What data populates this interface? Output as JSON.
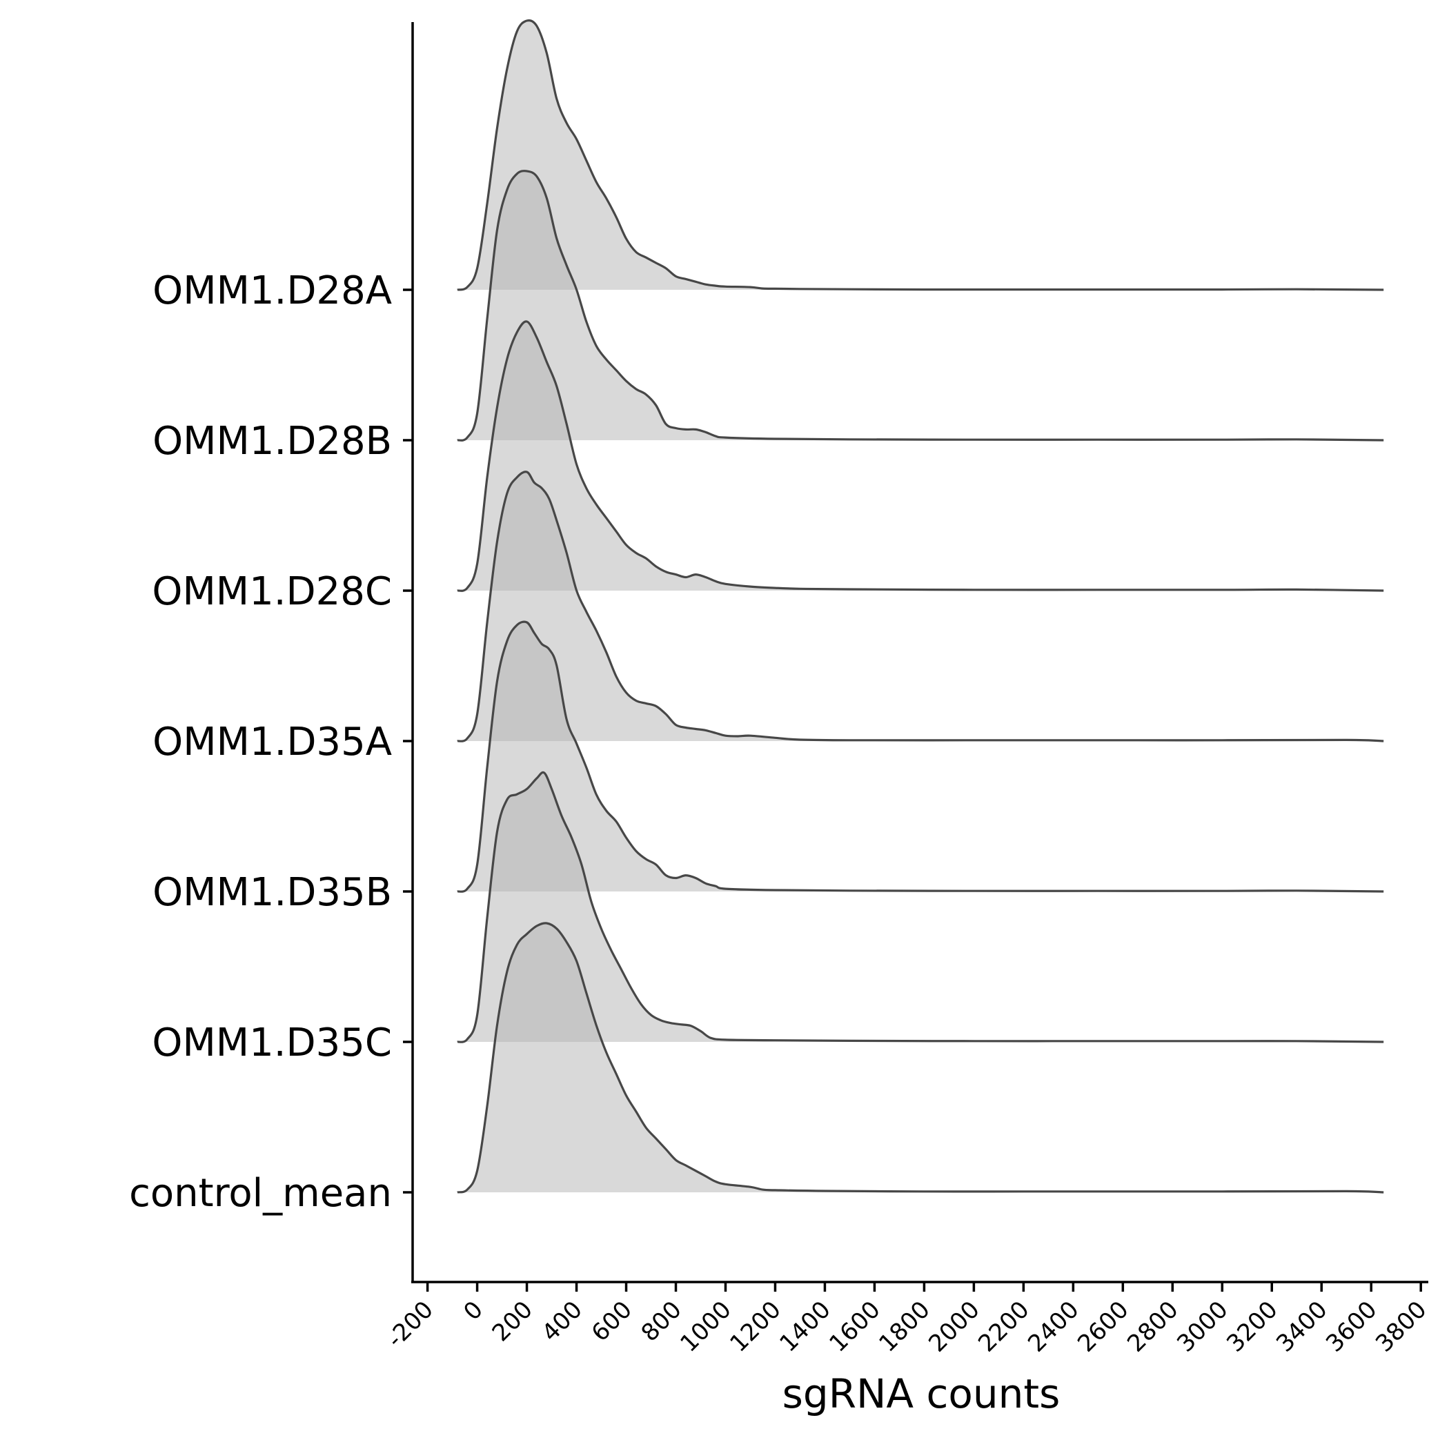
{
  "chart_data": {
    "type": "ridgeline",
    "title": "",
    "xlabel": "sgRNA counts",
    "ylabel": "",
    "xlim": [
      -260,
      3830
    ],
    "x_ticks": [
      -200,
      0,
      200,
      400,
      600,
      800,
      1000,
      1200,
      1400,
      1600,
      1800,
      2000,
      2200,
      2400,
      2600,
      2800,
      3000,
      3200,
      3400,
      3600,
      3800
    ],
    "x_tick_labels": [
      "-200",
      "0",
      "200",
      "400",
      "600",
      "800",
      "1000",
      "1200",
      "1400",
      "1600",
      "1800",
      "2000",
      "2200",
      "2400",
      "2600",
      "2800",
      "3000",
      "3200",
      "3400",
      "3600",
      "3800"
    ],
    "x_range_of_density": [
      -80,
      3650
    ],
    "fill_color": "#b3b3b3",
    "fill_opacity": 0.5,
    "line_color": "#474747",
    "series": [
      {
        "name": "OMM1.D28A",
        "points": [
          [
            -80,
            0
          ],
          [
            -40,
            0.01
          ],
          [
            0,
            0.08
          ],
          [
            40,
            0.32
          ],
          [
            80,
            0.6
          ],
          [
            120,
            0.82
          ],
          [
            160,
            0.96
          ],
          [
            200,
            1.0
          ],
          [
            240,
            0.98
          ],
          [
            280,
            0.88
          ],
          [
            320,
            0.71
          ],
          [
            360,
            0.62
          ],
          [
            400,
            0.56
          ],
          [
            440,
            0.48
          ],
          [
            480,
            0.4
          ],
          [
            520,
            0.34
          ],
          [
            560,
            0.27
          ],
          [
            600,
            0.19
          ],
          [
            640,
            0.14
          ],
          [
            680,
            0.12
          ],
          [
            720,
            0.1
          ],
          [
            760,
            0.08
          ],
          [
            800,
            0.05
          ],
          [
            840,
            0.04
          ],
          [
            880,
            0.03
          ],
          [
            920,
            0.02
          ],
          [
            960,
            0.015
          ],
          [
            1000,
            0.012
          ],
          [
            1100,
            0.01
          ],
          [
            1150,
            0.005
          ],
          [
            1200,
            0.004
          ],
          [
            1300,
            0.003
          ],
          [
            1500,
            0.002
          ],
          [
            1800,
            0.001
          ],
          [
            2200,
            0.001
          ],
          [
            2600,
            0.001
          ],
          [
            3000,
            0.001
          ],
          [
            3300,
            0.002
          ],
          [
            3650,
            0
          ]
        ]
      },
      {
        "name": "OMM1.D28B",
        "points": [
          [
            -80,
            0
          ],
          [
            -40,
            0.01
          ],
          [
            0,
            0.1
          ],
          [
            40,
            0.45
          ],
          [
            80,
            0.78
          ],
          [
            120,
            0.93
          ],
          [
            160,
            0.99
          ],
          [
            200,
            1.0
          ],
          [
            240,
            0.98
          ],
          [
            280,
            0.9
          ],
          [
            320,
            0.75
          ],
          [
            360,
            0.65
          ],
          [
            400,
            0.56
          ],
          [
            440,
            0.44
          ],
          [
            480,
            0.35
          ],
          [
            520,
            0.3
          ],
          [
            560,
            0.26
          ],
          [
            600,
            0.22
          ],
          [
            640,
            0.19
          ],
          [
            680,
            0.17
          ],
          [
            720,
            0.13
          ],
          [
            760,
            0.06
          ],
          [
            800,
            0.045
          ],
          [
            840,
            0.04
          ],
          [
            880,
            0.04
          ],
          [
            920,
            0.03
          ],
          [
            960,
            0.015
          ],
          [
            1000,
            0.01
          ],
          [
            1200,
            0.005
          ],
          [
            1500,
            0.003
          ],
          [
            2000,
            0.002
          ],
          [
            2500,
            0.002
          ],
          [
            3000,
            0.002
          ],
          [
            3300,
            0.003
          ],
          [
            3650,
            0
          ]
        ]
      },
      {
        "name": "OMM1.D28C",
        "points": [
          [
            -80,
            0
          ],
          [
            -40,
            0.01
          ],
          [
            0,
            0.1
          ],
          [
            40,
            0.42
          ],
          [
            80,
            0.68
          ],
          [
            120,
            0.86
          ],
          [
            160,
            0.96
          ],
          [
            200,
            1.0
          ],
          [
            240,
            0.94
          ],
          [
            280,
            0.85
          ],
          [
            320,
            0.76
          ],
          [
            360,
            0.62
          ],
          [
            400,
            0.47
          ],
          [
            440,
            0.38
          ],
          [
            480,
            0.32
          ],
          [
            520,
            0.27
          ],
          [
            560,
            0.22
          ],
          [
            600,
            0.17
          ],
          [
            640,
            0.14
          ],
          [
            680,
            0.12
          ],
          [
            720,
            0.09
          ],
          [
            760,
            0.07
          ],
          [
            800,
            0.06
          ],
          [
            840,
            0.05
          ],
          [
            880,
            0.06
          ],
          [
            920,
            0.05
          ],
          [
            960,
            0.035
          ],
          [
            1000,
            0.025
          ],
          [
            1100,
            0.015
          ],
          [
            1200,
            0.01
          ],
          [
            1300,
            0.007
          ],
          [
            1500,
            0.005
          ],
          [
            2000,
            0.003
          ],
          [
            2500,
            0.003
          ],
          [
            3000,
            0.003
          ],
          [
            3300,
            0.004
          ],
          [
            3650,
            0
          ]
        ]
      },
      {
        "name": "OMM1.D35A",
        "points": [
          [
            -80,
            0
          ],
          [
            -40,
            0.01
          ],
          [
            0,
            0.1
          ],
          [
            40,
            0.44
          ],
          [
            80,
            0.74
          ],
          [
            120,
            0.92
          ],
          [
            160,
            0.98
          ],
          [
            200,
            1.0
          ],
          [
            230,
            0.96
          ],
          [
            260,
            0.94
          ],
          [
            290,
            0.9
          ],
          [
            320,
            0.82
          ],
          [
            360,
            0.7
          ],
          [
            400,
            0.56
          ],
          [
            440,
            0.48
          ],
          [
            480,
            0.41
          ],
          [
            520,
            0.33
          ],
          [
            560,
            0.24
          ],
          [
            600,
            0.18
          ],
          [
            640,
            0.15
          ],
          [
            680,
            0.14
          ],
          [
            720,
            0.13
          ],
          [
            760,
            0.1
          ],
          [
            800,
            0.06
          ],
          [
            840,
            0.05
          ],
          [
            880,
            0.045
          ],
          [
            920,
            0.04
          ],
          [
            960,
            0.03
          ],
          [
            1000,
            0.02
          ],
          [
            1050,
            0.018
          ],
          [
            1100,
            0.02
          ],
          [
            1200,
            0.012
          ],
          [
            1300,
            0.005
          ],
          [
            1500,
            0.003
          ],
          [
            2000,
            0.003
          ],
          [
            2500,
            0.003
          ],
          [
            3000,
            0.003
          ],
          [
            3500,
            0.004
          ],
          [
            3650,
            0
          ]
        ]
      },
      {
        "name": "OMM1.D35B",
        "points": [
          [
            -80,
            0
          ],
          [
            -40,
            0.01
          ],
          [
            0,
            0.1
          ],
          [
            40,
            0.46
          ],
          [
            80,
            0.78
          ],
          [
            120,
            0.93
          ],
          [
            160,
            0.99
          ],
          [
            200,
            1.0
          ],
          [
            230,
            0.96
          ],
          [
            260,
            0.92
          ],
          [
            290,
            0.9
          ],
          [
            320,
            0.84
          ],
          [
            360,
            0.64
          ],
          [
            400,
            0.55
          ],
          [
            440,
            0.46
          ],
          [
            480,
            0.36
          ],
          [
            520,
            0.3
          ],
          [
            560,
            0.26
          ],
          [
            600,
            0.2
          ],
          [
            640,
            0.15
          ],
          [
            680,
            0.12
          ],
          [
            720,
            0.1
          ],
          [
            760,
            0.06
          ],
          [
            800,
            0.05
          ],
          [
            840,
            0.06
          ],
          [
            880,
            0.05
          ],
          [
            920,
            0.03
          ],
          [
            960,
            0.02
          ],
          [
            1000,
            0.01
          ],
          [
            1200,
            0.005
          ],
          [
            1500,
            0.003
          ],
          [
            2000,
            0.002
          ],
          [
            2500,
            0.002
          ],
          [
            3000,
            0.002
          ],
          [
            3300,
            0.003
          ],
          [
            3650,
            0
          ]
        ]
      },
      {
        "name": "OMM1.D35C",
        "points": [
          [
            -80,
            0
          ],
          [
            -40,
            0.01
          ],
          [
            0,
            0.1
          ],
          [
            40,
            0.46
          ],
          [
            80,
            0.78
          ],
          [
            120,
            0.9
          ],
          [
            160,
            0.92
          ],
          [
            200,
            0.94
          ],
          [
            240,
            0.98
          ],
          [
            270,
            1.0
          ],
          [
            300,
            0.94
          ],
          [
            340,
            0.84
          ],
          [
            380,
            0.76
          ],
          [
            420,
            0.66
          ],
          [
            460,
            0.52
          ],
          [
            500,
            0.42
          ],
          [
            540,
            0.34
          ],
          [
            580,
            0.27
          ],
          [
            620,
            0.2
          ],
          [
            660,
            0.14
          ],
          [
            700,
            0.1
          ],
          [
            740,
            0.08
          ],
          [
            780,
            0.07
          ],
          [
            820,
            0.065
          ],
          [
            860,
            0.06
          ],
          [
            900,
            0.04
          ],
          [
            940,
            0.015
          ],
          [
            1000,
            0.008
          ],
          [
            1200,
            0.006
          ],
          [
            1500,
            0.004
          ],
          [
            2000,
            0.003
          ],
          [
            2500,
            0.003
          ],
          [
            3000,
            0.003
          ],
          [
            3300,
            0.003
          ],
          [
            3650,
            0
          ]
        ]
      },
      {
        "name": "control_mean",
        "points": [
          [
            -80,
            0
          ],
          [
            -40,
            0.01
          ],
          [
            0,
            0.08
          ],
          [
            40,
            0.32
          ],
          [
            80,
            0.62
          ],
          [
            120,
            0.82
          ],
          [
            160,
            0.92
          ],
          [
            200,
            0.96
          ],
          [
            240,
            0.99
          ],
          [
            280,
            1.0
          ],
          [
            320,
            0.98
          ],
          [
            360,
            0.93
          ],
          [
            400,
            0.86
          ],
          [
            440,
            0.74
          ],
          [
            480,
            0.62
          ],
          [
            520,
            0.52
          ],
          [
            560,
            0.44
          ],
          [
            600,
            0.36
          ],
          [
            640,
            0.3
          ],
          [
            680,
            0.24
          ],
          [
            720,
            0.2
          ],
          [
            760,
            0.16
          ],
          [
            800,
            0.12
          ],
          [
            840,
            0.1
          ],
          [
            880,
            0.08
          ],
          [
            920,
            0.06
          ],
          [
            960,
            0.04
          ],
          [
            1000,
            0.03
          ],
          [
            1100,
            0.02
          ],
          [
            1150,
            0.01
          ],
          [
            1200,
            0.008
          ],
          [
            1400,
            0.005
          ],
          [
            1800,
            0.003
          ],
          [
            2200,
            0.003
          ],
          [
            2600,
            0.003
          ],
          [
            3000,
            0.003
          ],
          [
            3500,
            0.004
          ],
          [
            3650,
            0
          ]
        ]
      }
    ]
  }
}
